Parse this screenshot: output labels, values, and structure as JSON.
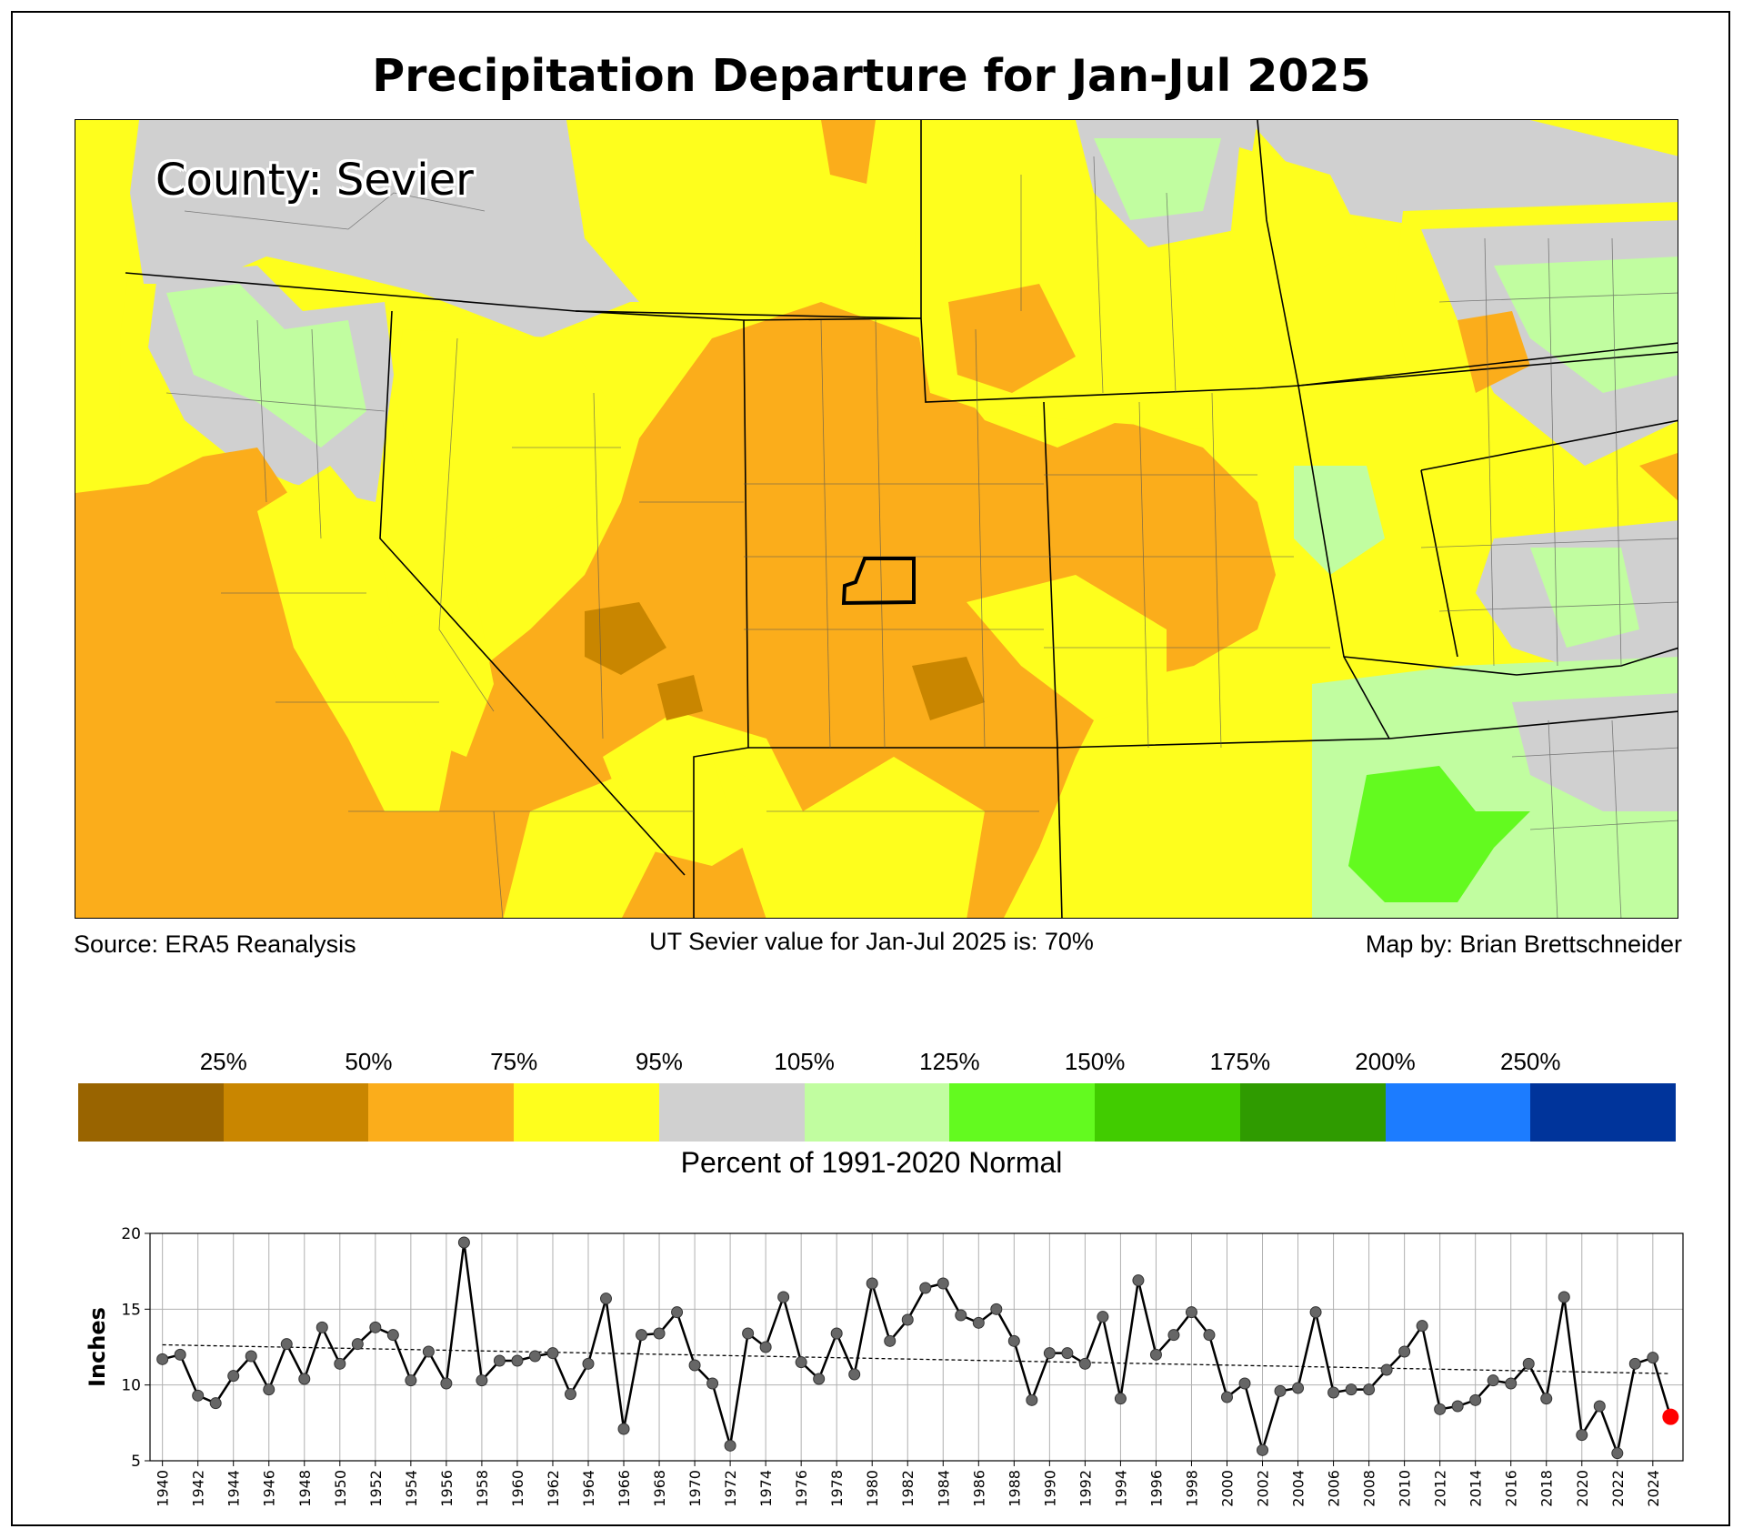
{
  "title": "Precipitation Departure for Jan-Jul 2025",
  "map": {
    "county_label": "County: Sevier",
    "source": "Source: ERA5 Reanalysis",
    "value_text": "UT Sevier value for Jan-Jul 2025 is: 70%",
    "credit": "Map by: Brian Brettschneider"
  },
  "colorbar": {
    "colors": [
      "#996400",
      "#c98600",
      "#fbad1b",
      "#fefe1d",
      "#d0d0d0",
      "#c1fda0",
      "#63fa1f",
      "#41cc00",
      "#2f9b00",
      "#1c7cff",
      "#00349b"
    ],
    "ticks": [
      "25%",
      "50%",
      "75%",
      "95%",
      "105%",
      "125%",
      "150%",
      "175%",
      "200%",
      "250%"
    ],
    "label": "Percent of 1991-2020 Normal"
  },
  "chart_data": {
    "type": "line",
    "ylabel": "Inches",
    "ylim": [
      5,
      20
    ],
    "yticks": [
      5,
      10,
      15,
      20
    ],
    "xlim": [
      1939.3,
      2025.7
    ],
    "xticks": [
      1940,
      1942,
      1944,
      1946,
      1948,
      1950,
      1952,
      1954,
      1956,
      1958,
      1960,
      1962,
      1964,
      1966,
      1968,
      1970,
      1972,
      1974,
      1976,
      1978,
      1980,
      1982,
      1984,
      1986,
      1988,
      1990,
      1992,
      1994,
      1996,
      1998,
      2000,
      2002,
      2004,
      2006,
      2008,
      2010,
      2012,
      2014,
      2016,
      2018,
      2020,
      2022,
      2024
    ],
    "x": [
      1940,
      1941,
      1942,
      1943,
      1944,
      1945,
      1946,
      1947,
      1948,
      1949,
      1950,
      1951,
      1952,
      1953,
      1954,
      1955,
      1956,
      1957,
      1958,
      1959,
      1960,
      1961,
      1962,
      1963,
      1964,
      1965,
      1966,
      1967,
      1968,
      1969,
      1970,
      1971,
      1972,
      1973,
      1974,
      1975,
      1976,
      1977,
      1978,
      1979,
      1980,
      1981,
      1982,
      1983,
      1984,
      1985,
      1986,
      1987,
      1988,
      1989,
      1990,
      1991,
      1992,
      1993,
      1994,
      1995,
      1996,
      1997,
      1998,
      1999,
      2000,
      2001,
      2002,
      2003,
      2004,
      2005,
      2006,
      2007,
      2008,
      2009,
      2010,
      2011,
      2012,
      2013,
      2014,
      2015,
      2016,
      2017,
      2018,
      2019,
      2020,
      2021,
      2022,
      2023,
      2024
    ],
    "values": [
      11.7,
      12.0,
      9.3,
      8.8,
      10.6,
      11.9,
      9.7,
      12.7,
      10.4,
      13.8,
      11.4,
      12.7,
      13.8,
      13.3,
      10.3,
      12.2,
      10.1,
      19.4,
      10.3,
      11.6,
      11.6,
      11.9,
      12.1,
      9.4,
      11.4,
      15.7,
      7.1,
      13.3,
      13.4,
      14.8,
      11.3,
      10.1,
      6.0,
      13.4,
      12.5,
      15.8,
      11.5,
      10.4,
      13.4,
      10.7,
      16.7,
      12.9,
      14.3,
      16.4,
      16.7,
      14.6,
      14.1,
      15.0,
      12.9,
      9.0,
      12.1,
      12.1,
      11.4,
      14.5,
      9.1,
      16.9,
      12.0,
      13.3,
      14.8,
      13.3,
      9.2,
      10.1,
      5.7,
      9.6,
      9.8,
      14.8,
      9.5,
      9.7,
      9.7,
      11.0,
      12.2,
      13.9,
      8.4,
      8.6,
      9.0,
      10.3,
      10.1,
      11.4,
      9.1,
      15.8,
      6.7,
      8.6,
      5.5,
      11.4,
      11.8
    ],
    "current": {
      "year": 2025,
      "value": 7.9
    },
    "trend": {
      "start": [
        1940,
        12.65
      ],
      "end": [
        2025,
        10.75
      ]
    }
  }
}
